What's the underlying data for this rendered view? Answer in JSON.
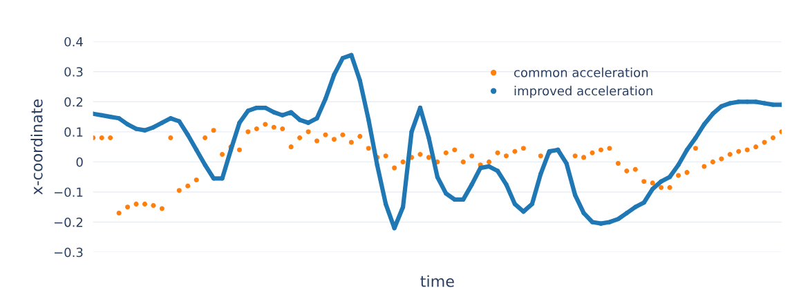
{
  "chart_data": {
    "type": "scatter",
    "xlabel": "time",
    "ylabel": "x-coordinate",
    "categories": [
      null,
      null,
      null,
      null,
      null,
      null,
      null,
      null,
      null,
      null,
      null,
      null,
      null,
      null,
      null,
      null,
      null,
      null,
      null,
      null,
      null,
      null,
      null,
      null,
      null,
      null,
      null,
      null,
      null,
      null,
      null,
      null,
      null,
      null,
      null,
      null,
      null,
      null,
      null,
      null,
      null,
      null,
      null,
      null,
      null,
      null,
      null,
      null,
      null,
      null,
      null,
      null,
      null,
      null,
      null,
      null,
      null,
      null,
      null,
      null,
      null,
      null,
      null,
      null,
      null,
      null,
      null,
      null,
      null,
      null,
      null,
      null,
      null,
      null,
      null,
      null,
      null,
      null,
      null,
      null,
      null
    ],
    "ylim": [
      -0.3,
      0.4
    ],
    "yticks": [
      {
        "value": -0.3,
        "label": "−0.3"
      },
      {
        "value": -0.2,
        "label": "−0.2"
      },
      {
        "value": -0.1,
        "label": "−0.1"
      },
      0,
      0.1,
      0.2,
      0.3,
      0.4
    ],
    "tick_labels": "y",
    "grid": "y",
    "legend": "top right",
    "marker": "circle",
    "series": [
      {
        "name": "common acceleration",
        "color": "#ff7f0e",
        "values": [
          0.08,
          0.08,
          0.08,
          -0.17,
          -0.15,
          -0.14,
          -0.14,
          -0.145,
          -0.155,
          0.08,
          -0.095,
          -0.08,
          -0.06,
          0.08,
          0.105,
          0.025,
          0.05,
          0.04,
          0.1,
          0.11,
          0.125,
          0.115,
          0.11,
          0.05,
          0.08,
          0.1,
          0.07,
          0.09,
          0.075,
          0.09,
          0.065,
          0.085,
          0.045,
          0.015,
          0.02,
          -0.02,
          0.0,
          0.015,
          0.025,
          0.015,
          0.0,
          0.03,
          0.04,
          0.0,
          0.02,
          -0.01,
          0.0,
          0.03,
          0.02,
          0.035,
          0.045,
          null,
          0.02,
          0.03,
          0.04,
          null,
          0.02,
          0.015,
          0.03,
          0.04,
          0.045,
          -0.005,
          -0.03,
          -0.025,
          -0.065,
          -0.07,
          -0.085,
          -0.085,
          -0.045,
          -0.035,
          0.045,
          -0.015,
          0.0,
          0.01,
          0.025,
          0.035,
          0.04,
          0.05,
          0.065,
          0.08,
          0.1
        ]
      },
      {
        "name": "improved acceleration",
        "type": "line",
        "color": "#1f77b4",
        "values": [
          0.16,
          0.155,
          0.15,
          0.145,
          0.125,
          0.11,
          0.105,
          0.115,
          0.13,
          0.145,
          0.135,
          0.09,
          0.04,
          -0.01,
          -0.055,
          -0.055,
          0.04,
          0.13,
          0.17,
          0.18,
          0.18,
          0.165,
          0.155,
          0.165,
          0.14,
          0.13,
          0.145,
          0.21,
          0.29,
          0.345,
          0.355,
          0.27,
          0.14,
          -0.01,
          -0.14,
          -0.22,
          -0.15,
          0.1,
          0.18,
          0.08,
          -0.05,
          -0.105,
          -0.125,
          -0.125,
          -0.075,
          -0.02,
          -0.015,
          -0.03,
          -0.075,
          -0.14,
          -0.165,
          -0.14,
          -0.04,
          0.035,
          0.04,
          -0.005,
          -0.11,
          -0.17,
          -0.2,
          -0.205,
          -0.2,
          -0.19,
          -0.17,
          -0.15,
          -0.135,
          -0.09,
          -0.065,
          -0.05,
          -0.01,
          0.04,
          0.08,
          0.125,
          0.16,
          0.185,
          0.195,
          0.2,
          0.2,
          0.2,
          0.195,
          0.19,
          0.19
        ]
      }
    ]
  }
}
